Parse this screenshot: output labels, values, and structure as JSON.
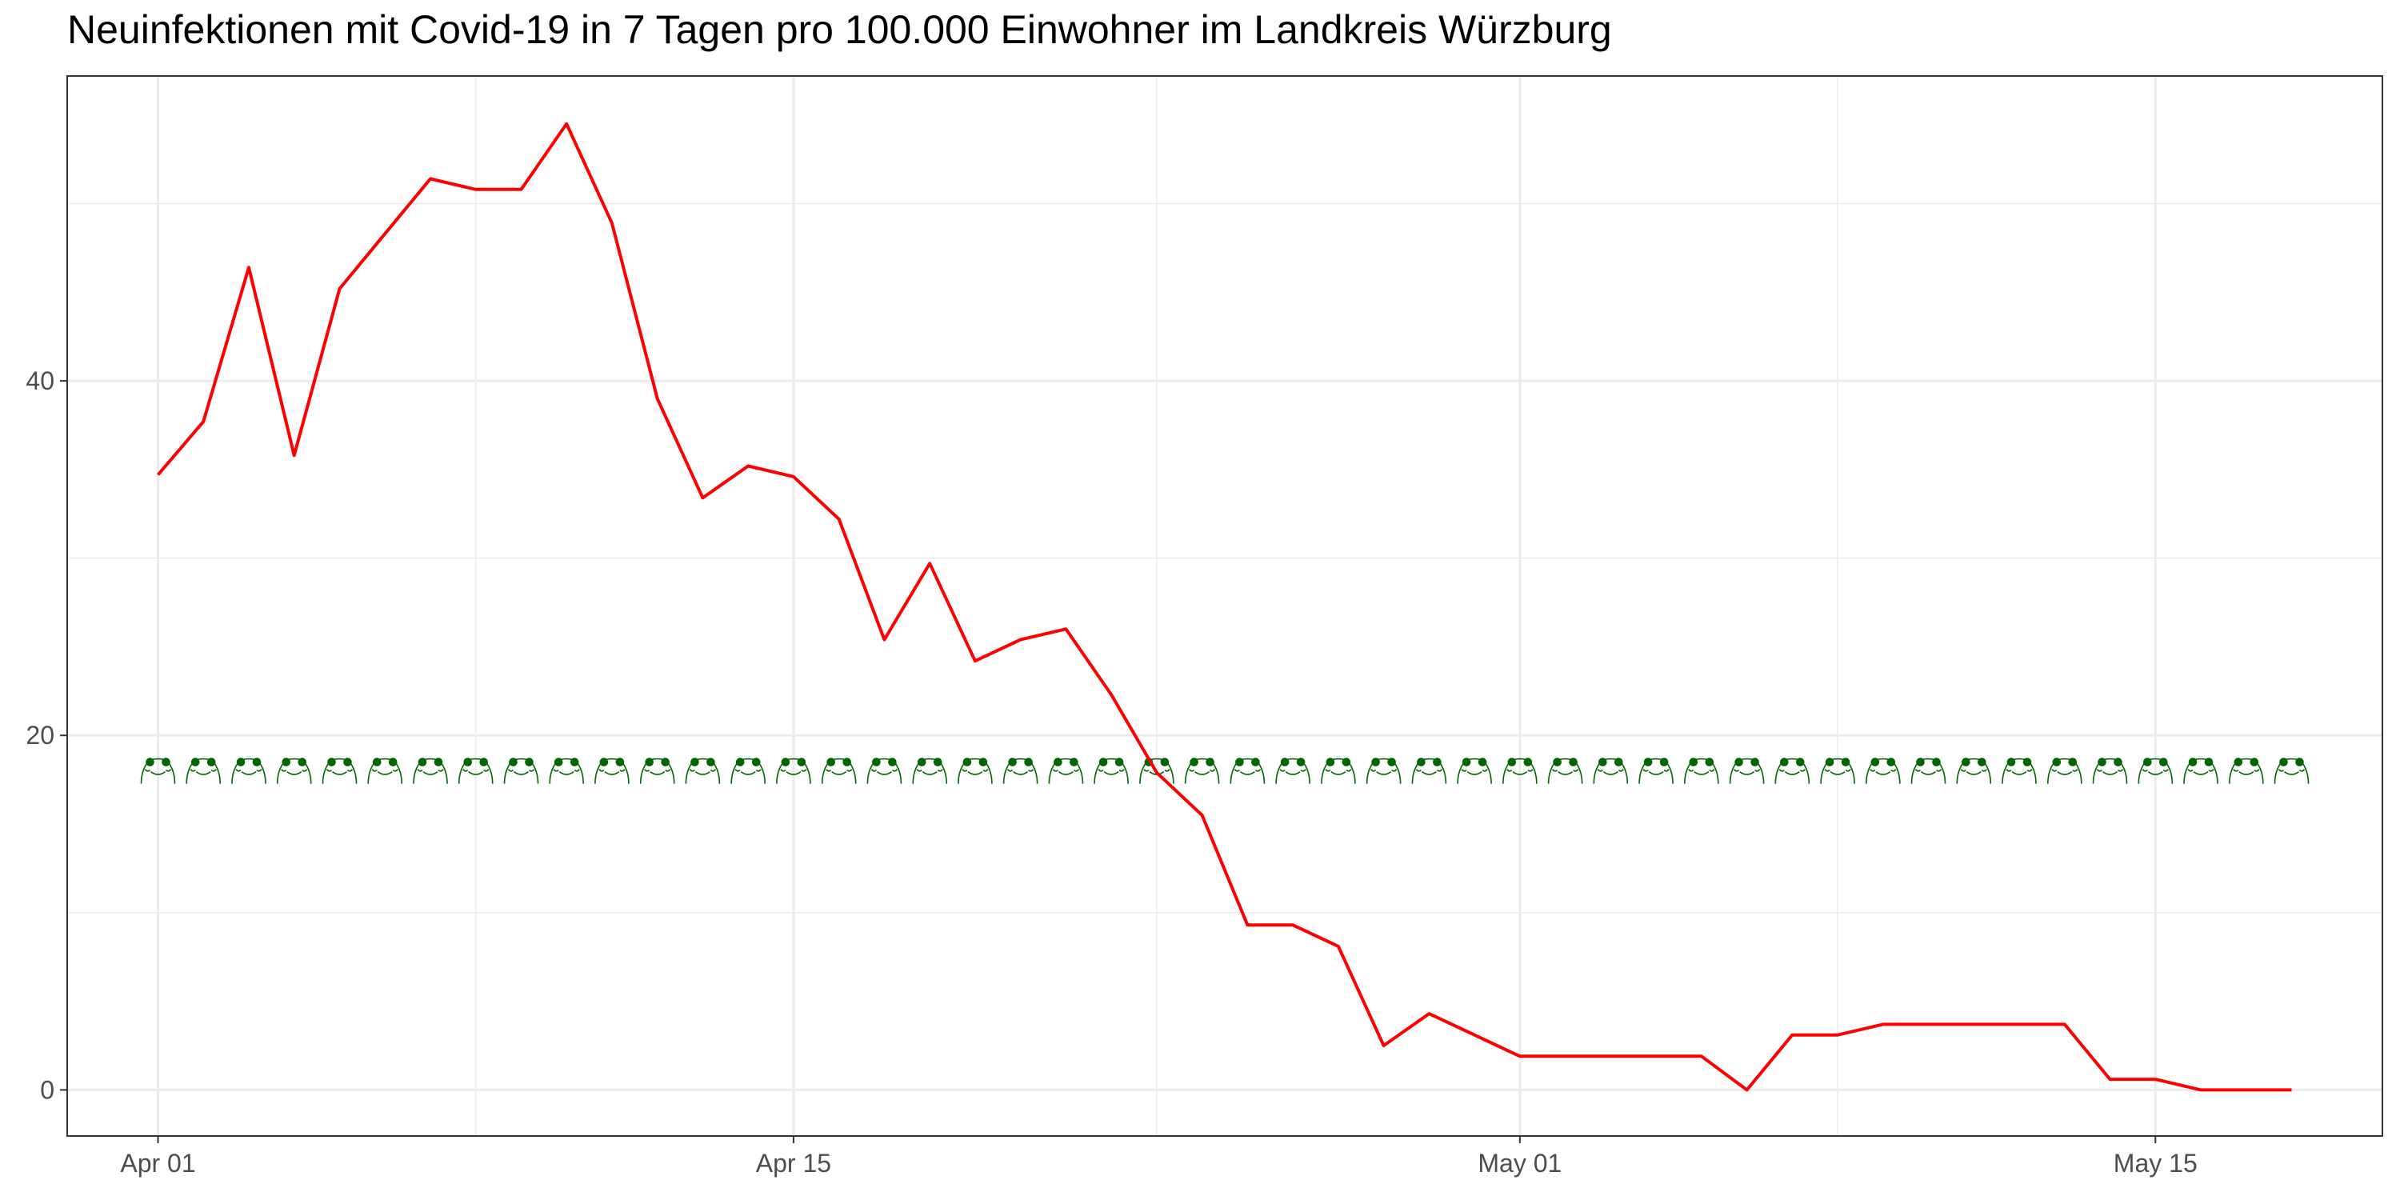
{
  "chart_data": {
    "type": "line",
    "title": "Neuinfektionen mit Covid-19 in 7 Tagen pro 100.000 Einwohner im Landkreis Würzburg",
    "xlabel": "",
    "ylabel": "",
    "x_range": [
      "2020-03-30",
      "2020-05-20"
    ],
    "ylim": [
      -2.6,
      57.2
    ],
    "x_ticks": [
      {
        "date": "2020-04-01",
        "label": "Apr 01"
      },
      {
        "date": "2020-04-15",
        "label": "Apr 15"
      },
      {
        "date": "2020-05-01",
        "label": "May 01"
      },
      {
        "date": "2020-05-15",
        "label": "May 15"
      }
    ],
    "x_minor_ticks": [
      "2020-04-08",
      "2020-04-23",
      "2020-05-08"
    ],
    "y_ticks": [
      0,
      20,
      40
    ],
    "y_minor_ticks": [
      10,
      30,
      50
    ],
    "grid": true,
    "series": [
      {
        "color": "#ff0000",
        "x": [
          "2020-04-01",
          "2020-04-02",
          "2020-04-03",
          "2020-04-04",
          "2020-04-05",
          "2020-04-06",
          "2020-04-07",
          "2020-04-08",
          "2020-04-09",
          "2020-04-10",
          "2020-04-11",
          "2020-04-12",
          "2020-04-13",
          "2020-04-14",
          "2020-04-15",
          "2020-04-16",
          "2020-04-17",
          "2020-04-18",
          "2020-04-19",
          "2020-04-20",
          "2020-04-21",
          "2020-04-22",
          "2020-04-23",
          "2020-04-24",
          "2020-04-25",
          "2020-04-26",
          "2020-04-27",
          "2020-04-28",
          "2020-04-29",
          "2020-04-30",
          "2020-05-01",
          "2020-05-02",
          "2020-05-03",
          "2020-05-04",
          "2020-05-05",
          "2020-05-06",
          "2020-05-07",
          "2020-05-08",
          "2020-05-09",
          "2020-05-10",
          "2020-05-11",
          "2020-05-12",
          "2020-05-13",
          "2020-05-14",
          "2020-05-15",
          "2020-05-16",
          "2020-05-17",
          "2020-05-18"
        ],
        "values": [
          34.7,
          37.7,
          46.4,
          35.8,
          45.2,
          48.3,
          51.4,
          50.8,
          50.8,
          54.5,
          48.9,
          39.0,
          33.4,
          35.2,
          34.6,
          32.2,
          25.4,
          29.7,
          24.2,
          25.4,
          26.0,
          22.3,
          17.9,
          15.5,
          9.3,
          9.3,
          8.1,
          2.5,
          4.3,
          3.1,
          1.9,
          1.9,
          1.9,
          1.9,
          1.9,
          0.0,
          3.1,
          3.1,
          3.7,
          3.7,
          3.7,
          3.7,
          3.7,
          0.6,
          0.6,
          0.0,
          0.0,
          0.0
        ]
      }
    ],
    "markers": {
      "icon": "frog-face-icon",
      "color": "#006400",
      "y": 18,
      "x_start": "2020-04-01",
      "x_end": "2020-05-18"
    }
  }
}
